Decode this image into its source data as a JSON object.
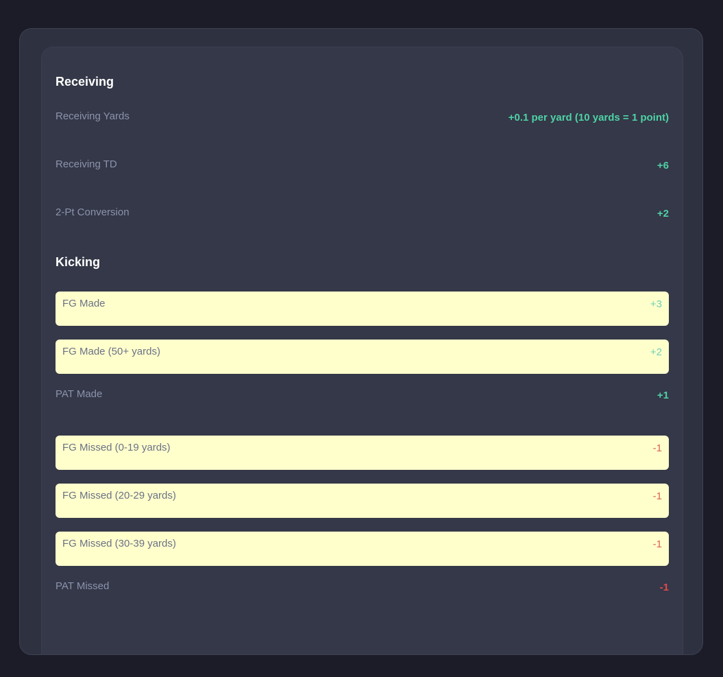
{
  "colors": {
    "positive": "#4fd1a5",
    "negative": "#e5484d",
    "highlight": "#ffffcc"
  },
  "sections": [
    {
      "title": "Receiving",
      "rows": [
        {
          "label": "Receiving Yards",
          "value": "+0.1 per yard (10 yards = 1 point)",
          "sign": "pos",
          "highlighted": false
        },
        {
          "label": "Receiving TD",
          "value": "+6",
          "sign": "pos",
          "highlighted": false
        },
        {
          "label": "2-Pt Conversion",
          "value": "+2",
          "sign": "pos",
          "highlighted": false
        }
      ]
    },
    {
      "title": "Kicking",
      "rows": [
        {
          "label": "FG Made",
          "value": "+3",
          "sign": "pos",
          "highlighted": true
        },
        {
          "label": "FG Made (50+ yards)",
          "value": "+2",
          "sign": "pos",
          "highlighted": true
        },
        {
          "label": "PAT Made",
          "value": "+1",
          "sign": "pos",
          "highlighted": false
        },
        {
          "label": "FG Missed (0-19 yards)",
          "value": "-1",
          "sign": "neg",
          "highlighted": true
        },
        {
          "label": "FG Missed (20-29 yards)",
          "value": "-1",
          "sign": "neg",
          "highlighted": true
        },
        {
          "label": "FG Missed (30-39 yards)",
          "value": "-1",
          "sign": "neg",
          "highlighted": true
        },
        {
          "label": "PAT Missed",
          "value": "-1",
          "sign": "neg",
          "highlighted": false
        }
      ]
    }
  ]
}
